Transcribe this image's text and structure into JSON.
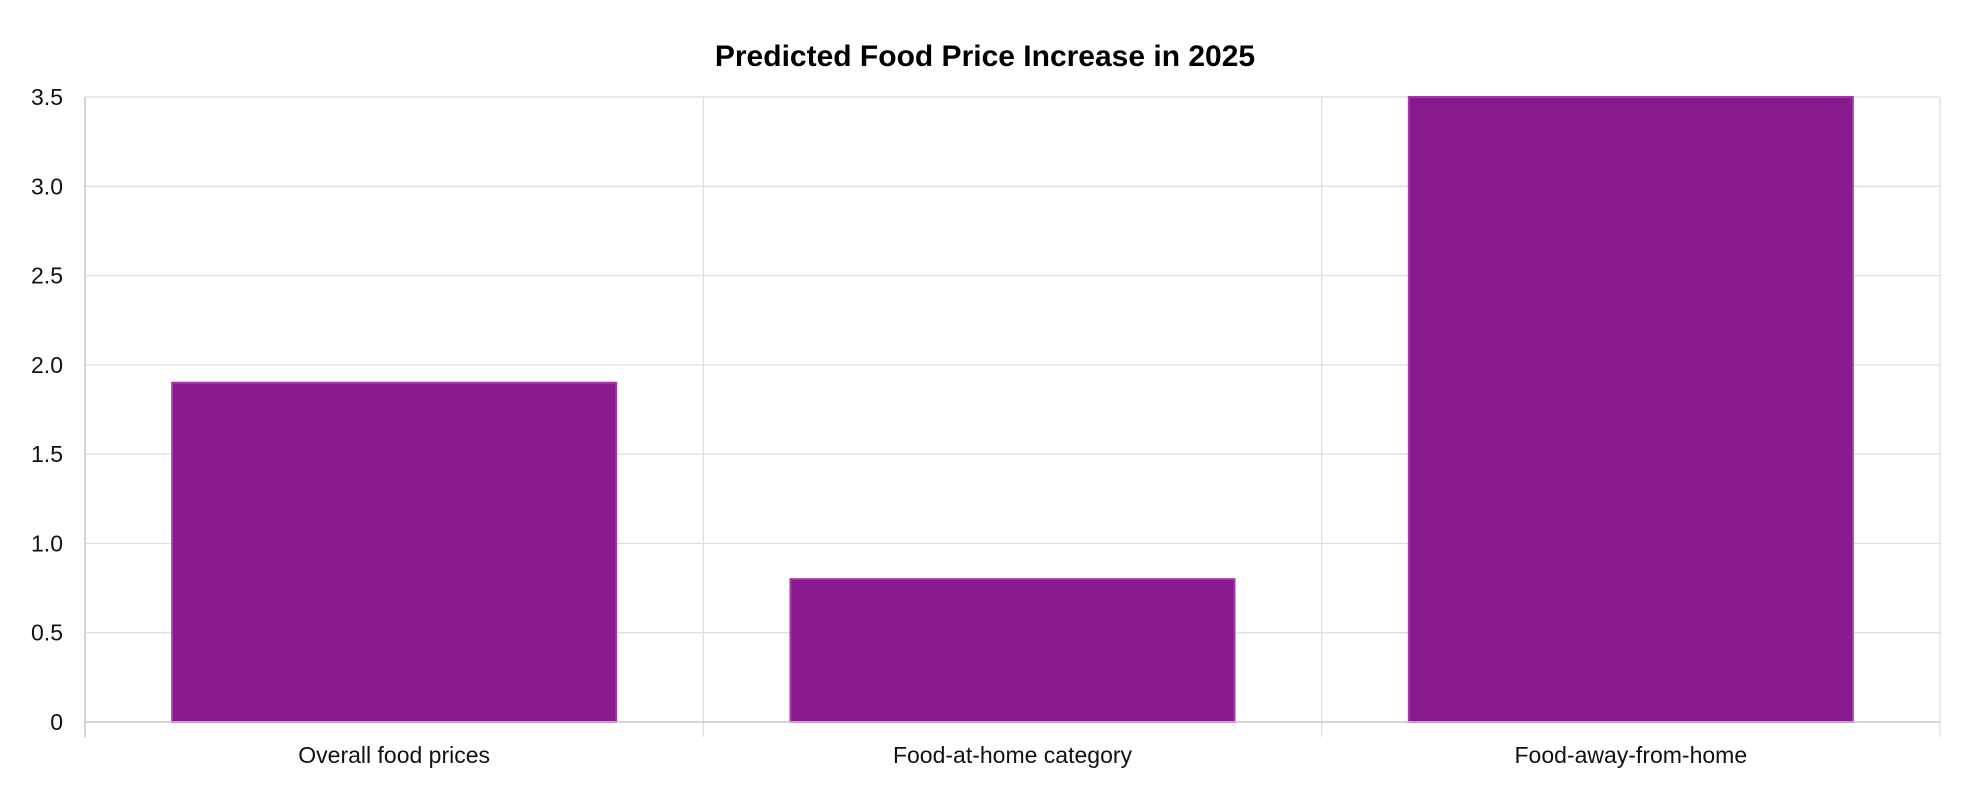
{
  "chart_data": {
    "type": "bar",
    "title": "Predicted Food Price Increase in 2025",
    "categories": [
      "Overall food prices",
      "Food-at-home category",
      "Food-away-from-home"
    ],
    "series": [
      {
        "values": [
          1.9,
          0.8,
          3.5
        ]
      }
    ],
    "xlabel": "",
    "ylabel": "",
    "ylim": [
      0,
      3.5
    ],
    "yticks": [
      "0",
      "0.5",
      "1.0",
      "1.5",
      "2.0",
      "2.5",
      "3.0",
      "3.5"
    ],
    "grid": true,
    "legend": "none",
    "colors": {
      "bar_fill": "#881a8d",
      "bar_border": "#a03ba5"
    }
  }
}
